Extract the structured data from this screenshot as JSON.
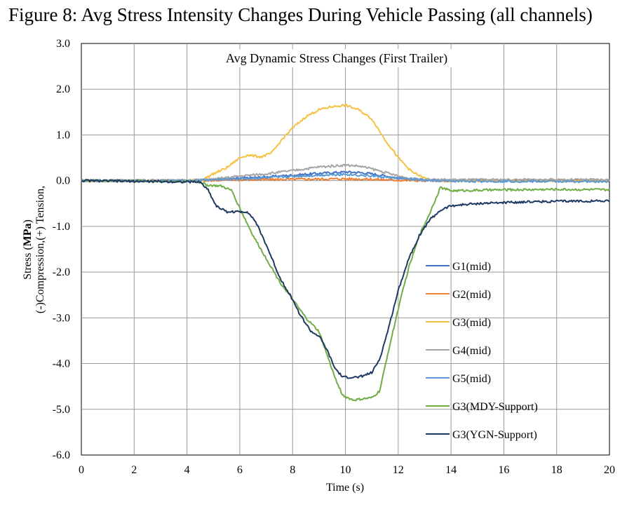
{
  "figure_title": "Figure 8: Avg Stress Intensity Changes During Vehicle Passing (all channels)",
  "chart_data": {
    "type": "line",
    "title": "Avg Dynamic Stress Changes (First Trailer)",
    "xlabel": "Time (s)",
    "ylabel_line1_prefix": "Stress (",
    "ylabel_line1_unit": "MPa",
    "ylabel_line1_suffix": ")",
    "ylabel_line2": "(-)Compression,(+) Tension,",
    "xlim": [
      0,
      20
    ],
    "ylim": [
      -6,
      3
    ],
    "x_ticks": [
      0,
      2,
      4,
      6,
      8,
      10,
      12,
      14,
      16,
      18,
      20
    ],
    "y_ticks": [
      3,
      2,
      1,
      0,
      -1,
      -2,
      -3,
      -4,
      -5,
      -6
    ],
    "x_tick_labels": [
      "0",
      "2",
      "4",
      "6",
      "8",
      "10",
      "12",
      "14",
      "16",
      "18",
      "20"
    ],
    "y_tick_labels": [
      "3.0",
      "2.0",
      "1.0",
      "0.0",
      "-1.0",
      "-2.0",
      "-3.0",
      "-4.0",
      "-5.0",
      "-6.0"
    ],
    "grid": true,
    "legend_position": "bottom-right",
    "series": [
      {
        "name": "G1(mid)",
        "color": "#4472c4",
        "points": [
          [
            0,
            0
          ],
          [
            4,
            0
          ],
          [
            5,
            0.02
          ],
          [
            6,
            0.05
          ],
          [
            7,
            0.08
          ],
          [
            8,
            0.12
          ],
          [
            9,
            0.16
          ],
          [
            10,
            0.19
          ],
          [
            10.5,
            0.18
          ],
          [
            11,
            0.15
          ],
          [
            12,
            0.06
          ],
          [
            13,
            0.01
          ],
          [
            14,
            0
          ],
          [
            20,
            0
          ]
        ]
      },
      {
        "name": "G2(mid)",
        "color": "#ed7d31",
        "points": [
          [
            0,
            0
          ],
          [
            4,
            0
          ],
          [
            5,
            0.01
          ],
          [
            6,
            0.02
          ],
          [
            8,
            0.03
          ],
          [
            10,
            0.04
          ],
          [
            11,
            0.03
          ],
          [
            12,
            0.01
          ],
          [
            13,
            0
          ],
          [
            20,
            0
          ]
        ]
      },
      {
        "name": "G3(mid)",
        "color": "#f6c142",
        "points": [
          [
            0,
            0
          ],
          [
            4,
            0
          ],
          [
            4.6,
            0.02
          ],
          [
            5,
            0.15
          ],
          [
            5.5,
            0.28
          ],
          [
            6,
            0.5
          ],
          [
            6.3,
            0.56
          ],
          [
            6.8,
            0.52
          ],
          [
            7.2,
            0.6
          ],
          [
            7.6,
            0.9
          ],
          [
            8,
            1.15
          ],
          [
            8.5,
            1.4
          ],
          [
            9,
            1.55
          ],
          [
            9.5,
            1.62
          ],
          [
            10,
            1.65
          ],
          [
            10.5,
            1.55
          ],
          [
            11,
            1.35
          ],
          [
            11.5,
            0.9
          ],
          [
            12,
            0.5
          ],
          [
            12.5,
            0.2
          ],
          [
            13,
            0.05
          ],
          [
            13.5,
            0
          ],
          [
            20,
            0
          ]
        ]
      },
      {
        "name": "G4(mid)",
        "color": "#a5a5a5",
        "points": [
          [
            0,
            0
          ],
          [
            4,
            0
          ],
          [
            5,
            0.03
          ],
          [
            6,
            0.1
          ],
          [
            7,
            0.15
          ],
          [
            8,
            0.22
          ],
          [
            9,
            0.3
          ],
          [
            10,
            0.34
          ],
          [
            10.5,
            0.32
          ],
          [
            11,
            0.26
          ],
          [
            12,
            0.1
          ],
          [
            12.5,
            0.04
          ],
          [
            13,
            0.02
          ],
          [
            20,
            0.02
          ]
        ]
      },
      {
        "name": "G5(mid)",
        "color": "#5b9bd5",
        "points": [
          [
            0,
            0
          ],
          [
            4,
            0
          ],
          [
            5,
            0.02
          ],
          [
            6,
            0.04
          ],
          [
            7,
            0.06
          ],
          [
            8,
            0.09
          ],
          [
            9,
            0.12
          ],
          [
            10,
            0.14
          ],
          [
            11,
            0.1
          ],
          [
            12,
            0.05
          ],
          [
            13,
            0.01
          ],
          [
            14,
            -0.01
          ],
          [
            20,
            -0.02
          ]
        ]
      },
      {
        "name": "G3(MDY-Support)",
        "color": "#70ad47",
        "points": [
          [
            0,
            0
          ],
          [
            4.4,
            -0.02
          ],
          [
            4.8,
            -0.1
          ],
          [
            5.3,
            -0.12
          ],
          [
            5.7,
            -0.22
          ],
          [
            6,
            -0.6
          ],
          [
            6.5,
            -1.2
          ],
          [
            7,
            -1.7
          ],
          [
            7.5,
            -2.2
          ],
          [
            8,
            -2.6
          ],
          [
            8.5,
            -3.0
          ],
          [
            9,
            -3.3
          ],
          [
            9.3,
            -3.8
          ],
          [
            9.6,
            -4.3
          ],
          [
            9.9,
            -4.7
          ],
          [
            10.3,
            -4.8
          ],
          [
            11,
            -4.75
          ],
          [
            11.3,
            -4.6
          ],
          [
            11.6,
            -3.8
          ],
          [
            12,
            -2.8
          ],
          [
            12.4,
            -1.9
          ],
          [
            12.8,
            -1.2
          ],
          [
            13.2,
            -0.7
          ],
          [
            13.6,
            -0.15
          ],
          [
            14,
            -0.22
          ],
          [
            16,
            -0.2
          ],
          [
            18,
            -0.19
          ],
          [
            20,
            -0.2
          ]
        ]
      },
      {
        "name": "G3(YGN-Support)",
        "color": "#203864",
        "points": [
          [
            0,
            0
          ],
          [
            4.5,
            -0.03
          ],
          [
            4.8,
            -0.2
          ],
          [
            5.1,
            -0.55
          ],
          [
            5.5,
            -0.68
          ],
          [
            6.3,
            -0.68
          ],
          [
            6.6,
            -0.9
          ],
          [
            7,
            -1.4
          ],
          [
            7.5,
            -2.1
          ],
          [
            8,
            -2.6
          ],
          [
            8.3,
            -2.95
          ],
          [
            8.7,
            -3.3
          ],
          [
            9,
            -3.4
          ],
          [
            9.3,
            -3.7
          ],
          [
            9.6,
            -4.1
          ],
          [
            9.9,
            -4.3
          ],
          [
            10.5,
            -4.3
          ],
          [
            11,
            -4.2
          ],
          [
            11.3,
            -3.9
          ],
          [
            11.6,
            -3.3
          ],
          [
            12,
            -2.4
          ],
          [
            12.4,
            -1.7
          ],
          [
            12.8,
            -1.2
          ],
          [
            13.2,
            -0.85
          ],
          [
            13.6,
            -0.65
          ],
          [
            14,
            -0.55
          ],
          [
            15,
            -0.5
          ],
          [
            17,
            -0.46
          ],
          [
            20,
            -0.44
          ]
        ]
      }
    ]
  }
}
